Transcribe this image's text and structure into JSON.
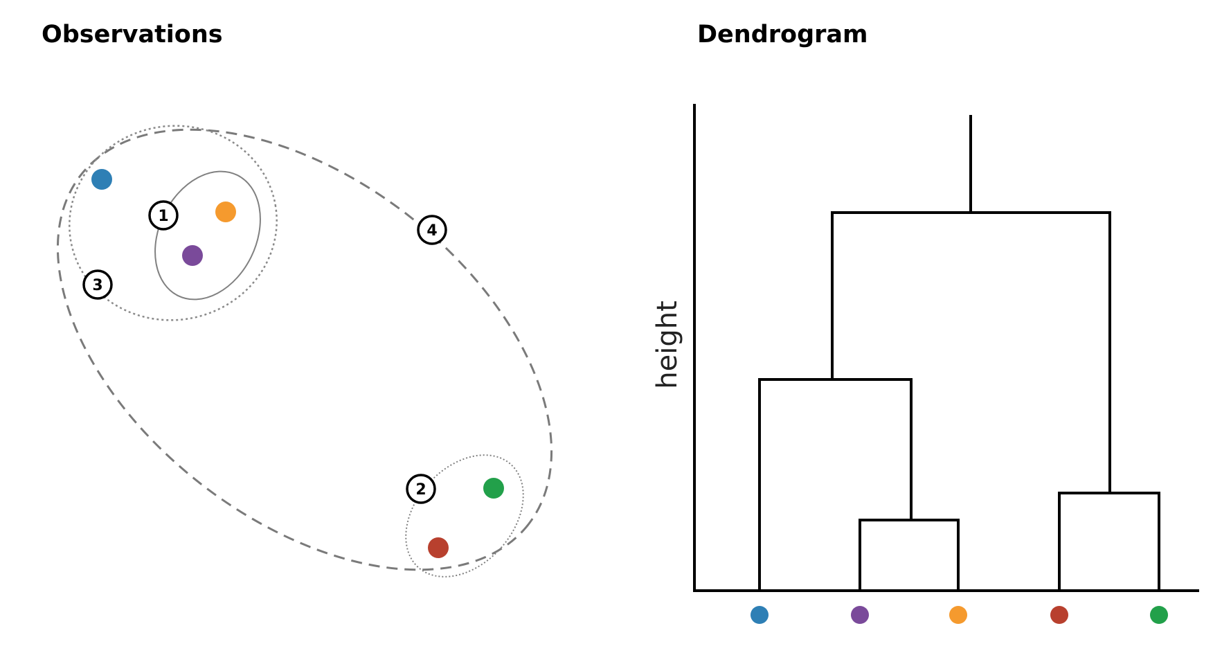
{
  "titles": {
    "observations": "Observations",
    "dendrogram": "Dendrogram"
  },
  "dendrogram": {
    "ylabel": "height",
    "leaf_order": [
      "blue",
      "purple",
      "orange",
      "red",
      "green"
    ]
  },
  "observations": {
    "points": [
      {
        "id": "blue",
        "color": "#2e7fb5"
      },
      {
        "id": "orange",
        "color": "#f59a2e"
      },
      {
        "id": "purple",
        "color": "#7a4a9a"
      },
      {
        "id": "green",
        "color": "#22a04a"
      },
      {
        "id": "red",
        "color": "#b8402e"
      }
    ],
    "step_labels": [
      "1",
      "2",
      "3",
      "4"
    ]
  },
  "colors": {
    "blue": "#2e7fb5",
    "purple": "#7a4a9a",
    "orange": "#f59a2e",
    "red": "#b8402e",
    "green": "#22a04a",
    "line": "#000000",
    "cluster_outline": "#808080"
  }
}
